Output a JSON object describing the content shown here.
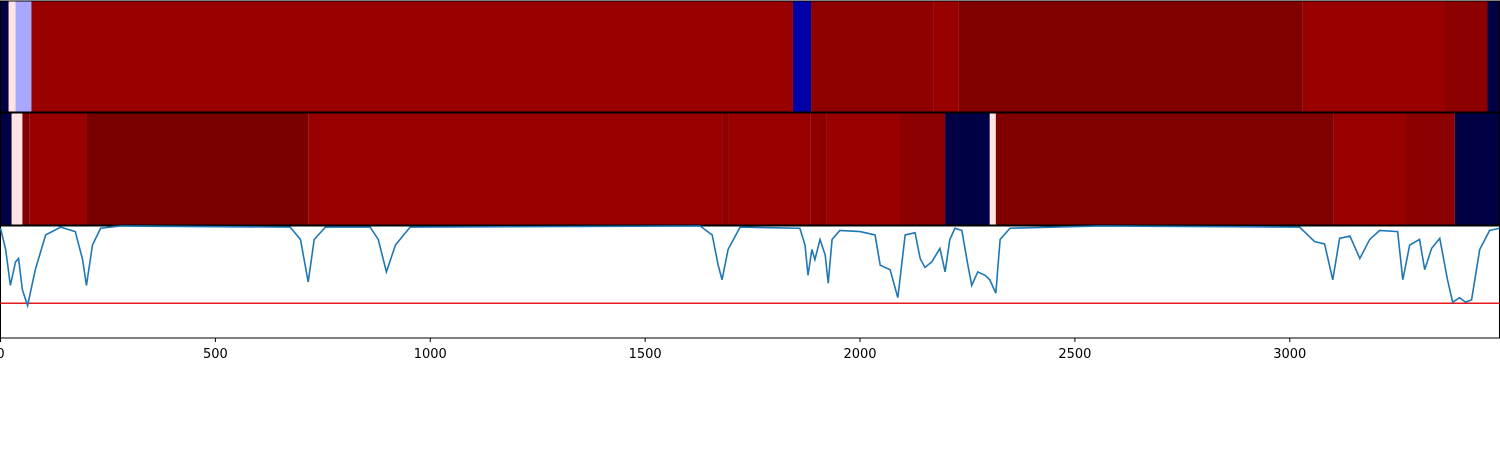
{
  "chart_data": [
    {
      "type": "strip",
      "xlim": [
        0,
        3488
      ],
      "segments": [
        {
          "start": 0,
          "end": 19,
          "color": "#000044"
        },
        {
          "start": 19,
          "end": 35,
          "color": "#ffe4e4"
        },
        {
          "start": 35,
          "end": 72,
          "color": "#a8a8ff"
        },
        {
          "start": 72,
          "end": 1844,
          "color": "#990000"
        },
        {
          "start": 1844,
          "end": 1886,
          "color": "#0000a8"
        },
        {
          "start": 1886,
          "end": 2170,
          "color": "#8e0000"
        },
        {
          "start": 2170,
          "end": 2230,
          "color": "#990000"
        },
        {
          "start": 2230,
          "end": 3030,
          "color": "#800000"
        },
        {
          "start": 3030,
          "end": 3360,
          "color": "#990000"
        },
        {
          "start": 3360,
          "end": 3460,
          "color": "#8c0000"
        },
        {
          "start": 3460,
          "end": 3488,
          "color": "#000044"
        }
      ]
    },
    {
      "type": "strip",
      "xlim": [
        0,
        3488
      ],
      "segments": [
        {
          "start": 0,
          "end": 26,
          "color": "#000044"
        },
        {
          "start": 26,
          "end": 51,
          "color": "#ffe4e4"
        },
        {
          "start": 51,
          "end": 67,
          "color": "#800000"
        },
        {
          "start": 67,
          "end": 200,
          "color": "#990000"
        },
        {
          "start": 200,
          "end": 716,
          "color": "#7a0000"
        },
        {
          "start": 716,
          "end": 1679,
          "color": "#990000"
        },
        {
          "start": 1679,
          "end": 1695,
          "color": "#8e0000"
        },
        {
          "start": 1695,
          "end": 1884,
          "color": "#990000"
        },
        {
          "start": 1884,
          "end": 1921,
          "color": "#8e0000"
        },
        {
          "start": 1921,
          "end": 2093,
          "color": "#990000"
        },
        {
          "start": 2093,
          "end": 2198,
          "color": "#8c0000"
        },
        {
          "start": 2198,
          "end": 2302,
          "color": "#000044"
        },
        {
          "start": 2302,
          "end": 2316,
          "color": "#ffe4e4"
        },
        {
          "start": 2316,
          "end": 3102,
          "color": "#800000"
        },
        {
          "start": 3102,
          "end": 3267,
          "color": "#990000"
        },
        {
          "start": 3267,
          "end": 3384,
          "color": "#8c0000"
        },
        {
          "start": 3384,
          "end": 3488,
          "color": "#000044"
        }
      ]
    },
    {
      "type": "line",
      "xlim": [
        0,
        3488
      ],
      "ylim": [
        0,
        1
      ],
      "xticks": [
        0,
        500,
        1000,
        1500,
        2000,
        2500,
        3000
      ],
      "threshold": 0.31,
      "threshold_color": "#e41a1c",
      "color": "#1f77b4",
      "x": [
        0,
        12,
        23,
        35,
        42,
        51,
        63,
        81,
        105,
        140,
        174,
        191,
        200,
        214,
        233,
        279,
        674,
        698,
        716,
        730,
        756,
        860,
        879,
        898,
        919,
        953,
        1628,
        1656,
        1670,
        1679,
        1693,
        1721,
        1860,
        1872,
        1879,
        1888,
        1895,
        1907,
        1919,
        1926,
        1935,
        1953,
        2000,
        2035,
        2047,
        2070,
        2088,
        2105,
        2128,
        2140,
        2151,
        2167,
        2186,
        2198,
        2209,
        2221,
        2237,
        2251,
        2260,
        2274,
        2291,
        2302,
        2316,
        2326,
        2349,
        2558,
        3023,
        3058,
        3081,
        3100,
        3116,
        3140,
        3163,
        3186,
        3209,
        3251,
        3263,
        3279,
        3302,
        3314,
        3330,
        3349,
        3367,
        3379,
        3395,
        3409,
        3423,
        3442,
        3465,
        3488
      ],
      "values": [
        0.98,
        0.79,
        0.47,
        0.68,
        0.71,
        0.43,
        0.29,
        0.61,
        0.92,
        0.99,
        0.95,
        0.7,
        0.47,
        0.83,
        0.98,
        1.0,
        0.99,
        0.88,
        0.5,
        0.88,
        0.99,
        0.99,
        0.88,
        0.59,
        0.83,
        0.99,
        1.0,
        0.92,
        0.65,
        0.52,
        0.79,
        0.99,
        0.98,
        0.83,
        0.56,
        0.79,
        0.7,
        0.88,
        0.74,
        0.49,
        0.88,
        0.96,
        0.95,
        0.92,
        0.65,
        0.61,
        0.36,
        0.92,
        0.94,
        0.71,
        0.63,
        0.68,
        0.8,
        0.59,
        0.88,
        0.98,
        0.96,
        0.65,
        0.47,
        0.59,
        0.56,
        0.52,
        0.4,
        0.88,
        0.98,
        1.0,
        0.99,
        0.86,
        0.84,
        0.52,
        0.89,
        0.91,
        0.71,
        0.88,
        0.96,
        0.95,
        0.52,
        0.83,
        0.88,
        0.61,
        0.8,
        0.89,
        0.52,
        0.32,
        0.36,
        0.32,
        0.34,
        0.79,
        0.96,
        0.98
      ]
    }
  ]
}
